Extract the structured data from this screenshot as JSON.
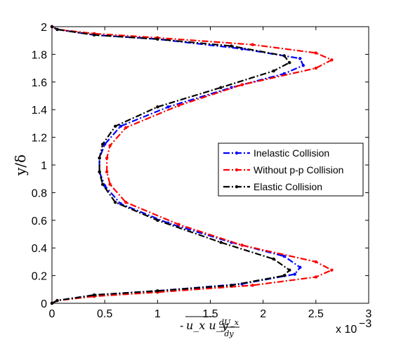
{
  "chart_data": {
    "type": "line",
    "xlabel": "-u_x u_y dU_x/dy",
    "xlabel_parts": {
      "minus": "-",
      "overline": "u_x u_y",
      "numerator": "dU_x",
      "denominator": "dy"
    },
    "ylabel": "y/δ",
    "x_multiplier": "x 10^-3",
    "x_multiplier_base": "x 10",
    "x_multiplier_exp": "−3",
    "xlim": [
      0,
      0.003
    ],
    "ylim": [
      0,
      2
    ],
    "x_ticks": [
      "0",
      "0.5",
      "1",
      "1.5",
      "2",
      "2.5",
      "3"
    ],
    "y_ticks": [
      "0",
      "0.2",
      "0.4",
      "0.6",
      "0.8",
      "1",
      "1.2",
      "1.4",
      "1.6",
      "1.8",
      "2"
    ],
    "grid": false,
    "legend_position": "right",
    "series": [
      {
        "name": "Inelastic Collision",
        "color": "#0000ff",
        "style": "dash-dot",
        "points": [
          [
            0,
            0
          ],
          [
            5e-05,
            0.02
          ],
          [
            0.0004,
            0.06
          ],
          [
            0.001,
            0.09
          ],
          [
            0.0018,
            0.14
          ],
          [
            0.0023,
            0.21
          ],
          [
            0.00235,
            0.26
          ],
          [
            0.0022,
            0.34
          ],
          [
            0.0017,
            0.44
          ],
          [
            0.0011,
            0.58
          ],
          [
            0.00065,
            0.72
          ],
          [
            0.0005,
            0.85
          ],
          [
            0.00045,
            0.95
          ],
          [
            0.00045,
            1.05
          ],
          [
            0.0005,
            1.15
          ],
          [
            0.00065,
            1.28
          ],
          [
            0.0011,
            1.42
          ],
          [
            0.0017,
            1.56
          ],
          [
            0.0022,
            1.66
          ],
          [
            0.00238,
            1.72
          ],
          [
            0.00235,
            1.77
          ],
          [
            0.0018,
            1.84
          ],
          [
            0.001,
            1.91
          ],
          [
            0.0004,
            1.94
          ],
          [
            5e-05,
            1.98
          ],
          [
            0,
            2
          ]
        ]
      },
      {
        "name": "Without p-p Collision",
        "color": "#ff0000",
        "style": "dash-dot",
        "points": [
          [
            0,
            0
          ],
          [
            5e-05,
            0.02
          ],
          [
            0.0004,
            0.05
          ],
          [
            0.001,
            0.08
          ],
          [
            0.0019,
            0.13
          ],
          [
            0.0025,
            0.19
          ],
          [
            0.00265,
            0.24
          ],
          [
            0.0025,
            0.3
          ],
          [
            0.0018,
            0.42
          ],
          [
            0.0012,
            0.57
          ],
          [
            0.0007,
            0.73
          ],
          [
            0.00055,
            0.86
          ],
          [
            0.00052,
            0.95
          ],
          [
            0.00052,
            1.05
          ],
          [
            0.00055,
            1.14
          ],
          [
            0.0007,
            1.27
          ],
          [
            0.0012,
            1.43
          ],
          [
            0.0018,
            1.58
          ],
          [
            0.0025,
            1.7
          ],
          [
            0.00265,
            1.76
          ],
          [
            0.0025,
            1.81
          ],
          [
            0.0019,
            1.87
          ],
          [
            0.001,
            1.92
          ],
          [
            0.0004,
            1.95
          ],
          [
            5e-05,
            1.98
          ],
          [
            0,
            2
          ]
        ]
      },
      {
        "name": "Elastic Collision",
        "color": "#000000",
        "style": "dash-dot",
        "points": [
          [
            0,
            0
          ],
          [
            5e-05,
            0.02
          ],
          [
            0.0004,
            0.06
          ],
          [
            0.001,
            0.09
          ],
          [
            0.0017,
            0.13
          ],
          [
            0.0022,
            0.2
          ],
          [
            0.00225,
            0.24
          ],
          [
            0.0021,
            0.32
          ],
          [
            0.0016,
            0.44
          ],
          [
            0.001,
            0.6
          ],
          [
            0.0006,
            0.73
          ],
          [
            0.00048,
            0.86
          ],
          [
            0.00045,
            0.95
          ],
          [
            0.00045,
            1.05
          ],
          [
            0.00048,
            1.15
          ],
          [
            0.0006,
            1.28
          ],
          [
            0.001,
            1.42
          ],
          [
            0.0016,
            1.56
          ],
          [
            0.0021,
            1.68
          ],
          [
            0.00225,
            1.74
          ],
          [
            0.0022,
            1.79
          ],
          [
            0.0017,
            1.86
          ],
          [
            0.001,
            1.91
          ],
          [
            0.0004,
            1.94
          ],
          [
            5e-05,
            1.98
          ],
          [
            0,
            2
          ]
        ]
      }
    ]
  }
}
